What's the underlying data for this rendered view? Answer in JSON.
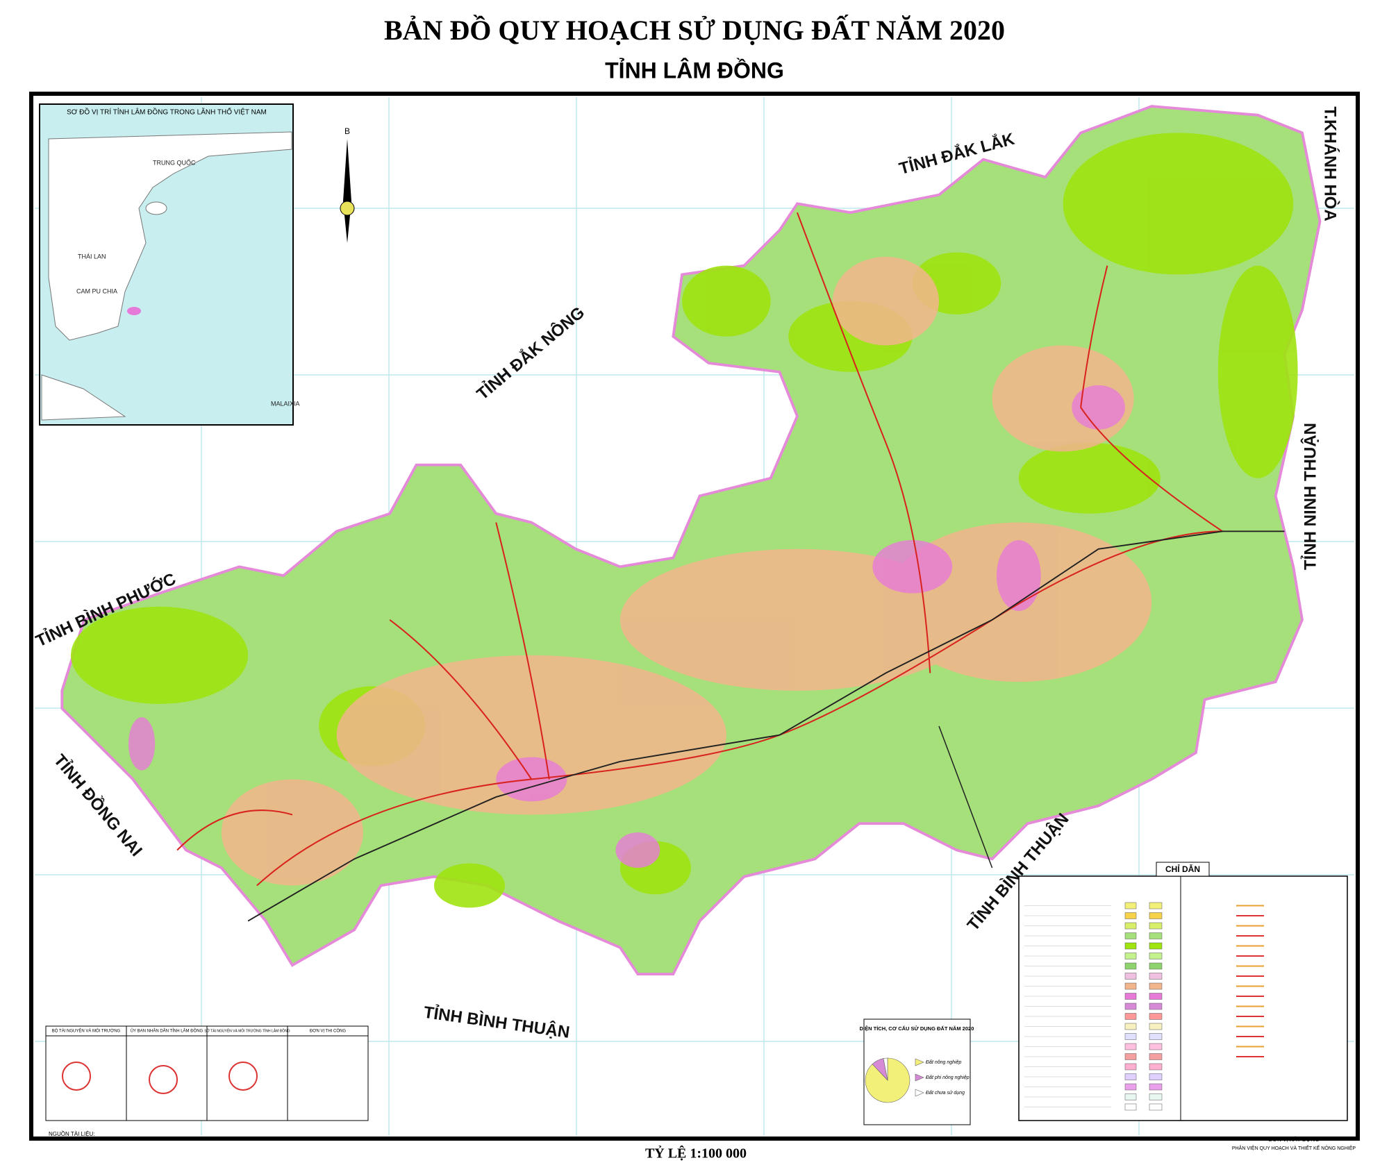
{
  "header": {
    "title": "BẢN ĐỒ QUY HOẠCH SỬ DỤNG ĐẤT NĂM 2020",
    "subtitle": "TỈNH LÂM ĐỒNG"
  },
  "inset": {
    "title": "SƠ ĐỒ VỊ TRÍ TỈNH LÂM ĐỒNG TRONG LÃNH THỔ VIỆT NAM",
    "labels": [
      "TRUNG QUỐC",
      "THÁI LAN",
      "CAM PU CHIA",
      "MALAIXIA"
    ]
  },
  "compass": "B",
  "neighbors": [
    "TỈNH ĐẮK LẮK",
    "T.KHÁNH HÒA",
    "TỈNH ĐẮK NÔNG",
    "TỈNH NINH THUẬN",
    "TỈNH BÌNH PHƯỚC",
    "TỈNH ĐỒNG NAI",
    "TỈNH BÌNH THUẬN",
    "TỈNH BÌNH THUẬN"
  ],
  "legend": {
    "title": "CHỈ DẪN"
  },
  "chart_data": {
    "type": "pie",
    "title": "DIỆN TÍCH, CƠ CẤU SỬ DỤNG ĐẤT NĂM 2020",
    "categories": [
      "Đất nông nghiệp",
      "Đất phi nông nghiệp",
      "Đất chưa sử dụng"
    ],
    "values": [
      88,
      9,
      3
    ],
    "colors": [
      "#f3f07a",
      "#d68ad6",
      "#ffffff"
    ]
  },
  "approvals": [
    "BỘ TÀI NGUYÊN VÀ MÔI TRƯỜNG",
    "ỦY BAN NHÂN DÂN TỈNH LÂM ĐỒNG",
    "SỞ TÀI NGUYÊN VÀ MÔI TRƯỜNG TỈNH LÂM ĐỒNG",
    "ĐƠN VỊ THI CÔNG"
  ],
  "source": "NGUỒN TÀI LIỆU:",
  "scale": "TỶ LỆ 1:100 000",
  "builder": {
    "title": "ĐƠN VỊ XÂY DỰNG",
    "name": "PHÂN VIỆN QUY HOẠCH VÀ THIẾT KẾ NÔNG NGHIỆP"
  }
}
